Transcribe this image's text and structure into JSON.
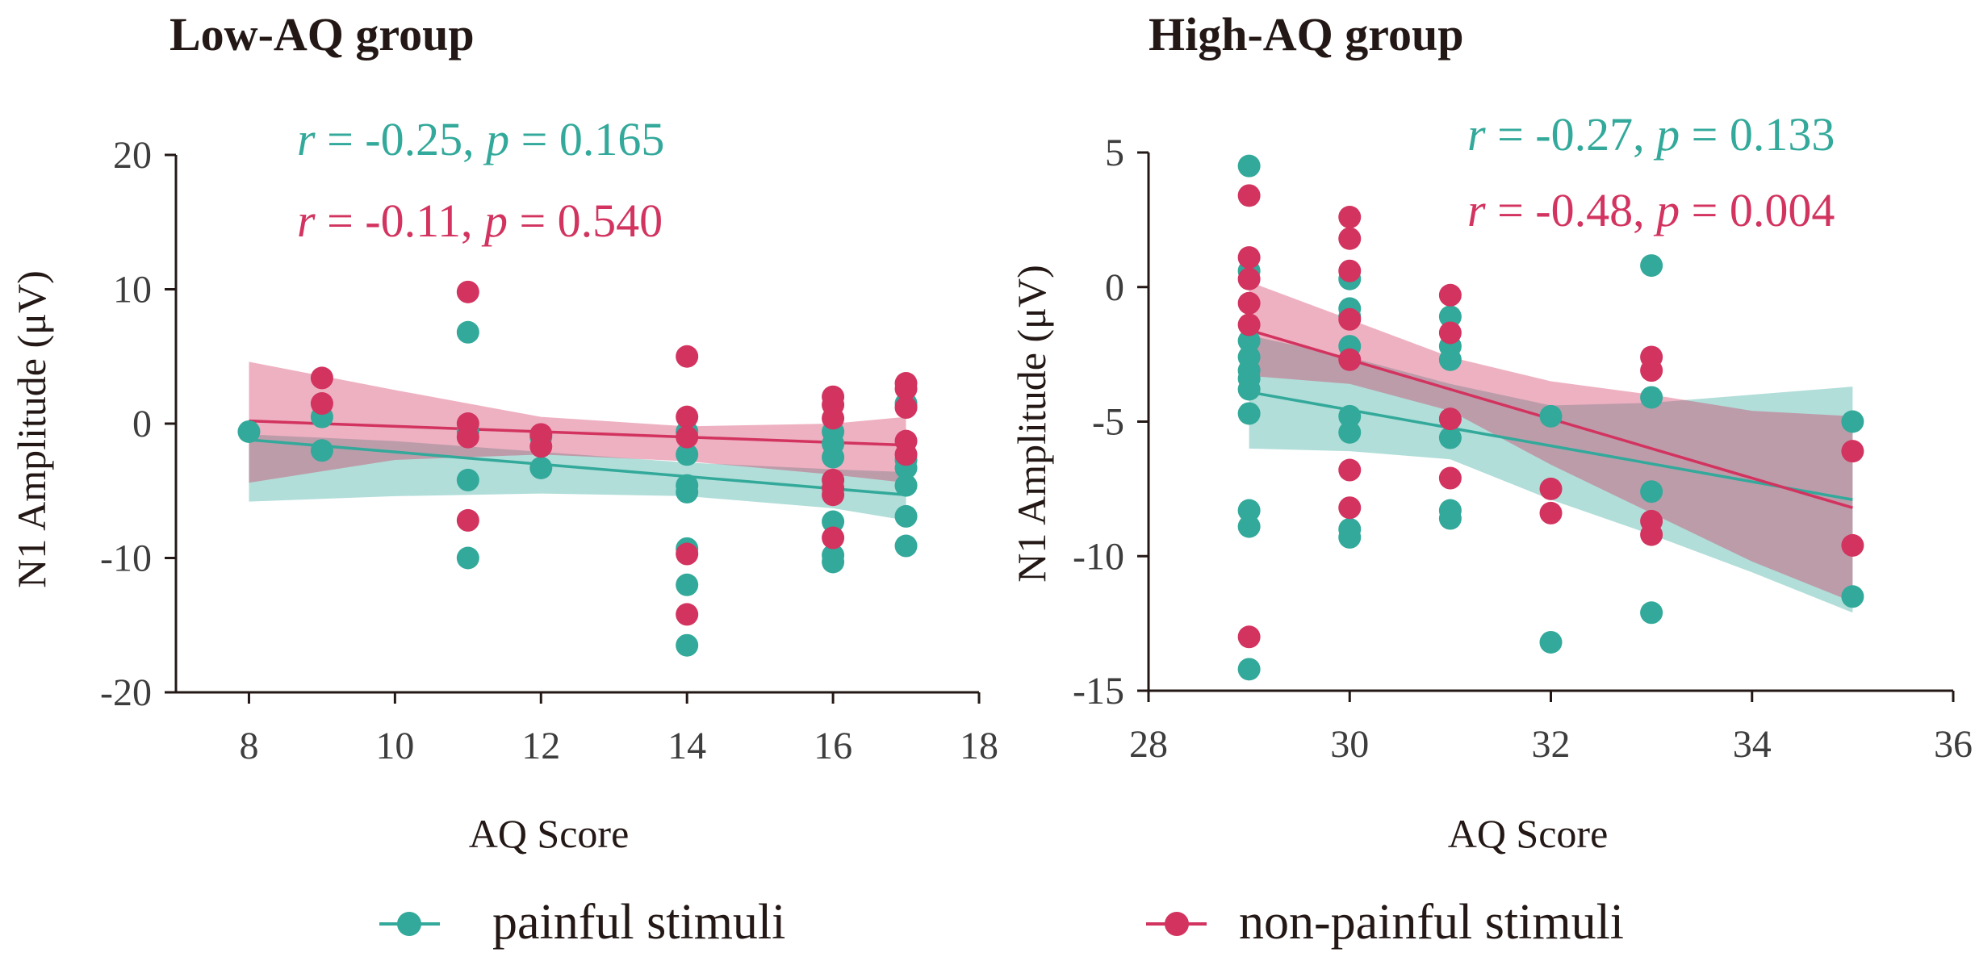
{
  "colors": {
    "painful": "#32a99a",
    "nonpainful": "#d2335f",
    "text": "#231815"
  },
  "legend": {
    "painful_label": "painful stimuli",
    "nonpainful_label": "non-painful stimuli"
  },
  "chart_data": [
    {
      "type": "scatter",
      "title": "Low-AQ group",
      "xlabel": "AQ Score",
      "ylabel": "N1 Amplitude (μV)",
      "xlim": [
        7,
        18
      ],
      "ylim": [
        -20,
        20
      ],
      "xticks": [
        8,
        10,
        12,
        14,
        16,
        18
      ],
      "yticks": [
        20,
        10,
        0,
        -10,
        -20
      ],
      "stats": [
        {
          "series": "painful",
          "r_label": "r",
          "r_text": " = -0.25,",
          "p_label": "p",
          "p_text": " = 0.165"
        },
        {
          "series": "nonpainful",
          "r_label": "r",
          "r_text": " = -0.11,",
          "p_label": "p",
          "p_text": " = 0.540"
        }
      ],
      "series": [
        {
          "name": "painful stimuli",
          "key": "painful",
          "points": [
            [
              8,
              -0.6
            ],
            [
              9,
              0.5
            ],
            [
              9,
              -2
            ],
            [
              11,
              6.8
            ],
            [
              11,
              -0.6
            ],
            [
              11,
              -4.2
            ],
            [
              11,
              -10
            ],
            [
              12,
              -1
            ],
            [
              12,
              -3.3
            ],
            [
              14,
              -0.6
            ],
            [
              14,
              -2.3
            ],
            [
              14,
              -4.6
            ],
            [
              14,
              -5.1
            ],
            [
              14,
              -9.3
            ],
            [
              14,
              -12
            ],
            [
              14,
              -16.5
            ],
            [
              16,
              -0.6
            ],
            [
              16,
              -1.5
            ],
            [
              16,
              -2.5
            ],
            [
              16,
              -7.3
            ],
            [
              16,
              -9.8
            ],
            [
              16,
              -10.3
            ],
            [
              17,
              1.5
            ],
            [
              17,
              -2.7
            ],
            [
              17,
              -3.3
            ],
            [
              17,
              -4.6
            ],
            [
              17,
              -6.9
            ],
            [
              17,
              -9.1
            ]
          ],
          "fit": {
            "x": [
              8,
              17
            ],
            "y": [
              -1.2,
              -5.3
            ]
          },
          "ci_upper": [
            [
              8,
              -0.8
            ],
            [
              10,
              -1.3
            ],
            [
              12,
              -2.1
            ],
            [
              14,
              -2.9
            ],
            [
              16,
              -3.4
            ],
            [
              17,
              -3.6
            ]
          ],
          "ci_lower": [
            [
              8,
              -5.8
            ],
            [
              10,
              -5.4
            ],
            [
              12,
              -5.2
            ],
            [
              14,
              -5.4
            ],
            [
              16,
              -6.3
            ],
            [
              17,
              -7.2
            ]
          ]
        },
        {
          "name": "non-painful stimuli",
          "key": "nonpainful",
          "points": [
            [
              9,
              3.4
            ],
            [
              9,
              1.5
            ],
            [
              11,
              9.8
            ],
            [
              11,
              0
            ],
            [
              11,
              -1
            ],
            [
              11,
              -7.2
            ],
            [
              12,
              -0.8
            ],
            [
              12,
              -1.7
            ],
            [
              14,
              5
            ],
            [
              14,
              0.5
            ],
            [
              14,
              -1
            ],
            [
              14,
              -9.7
            ],
            [
              14,
              -14.2
            ],
            [
              16,
              2
            ],
            [
              16,
              1.4
            ],
            [
              16,
              0.4
            ],
            [
              16,
              -4.2
            ],
            [
              16,
              -4.8
            ],
            [
              16,
              -5.3
            ],
            [
              16,
              -8.5
            ],
            [
              17,
              3
            ],
            [
              17,
              2.6
            ],
            [
              17,
              1.2
            ],
            [
              17,
              -1.3
            ],
            [
              17,
              -2.3
            ]
          ],
          "fit": {
            "x": [
              8,
              17
            ],
            "y": [
              0.2,
              -1.6
            ]
          },
          "ci_upper": [
            [
              8,
              4.6
            ],
            [
              10,
              2.5
            ],
            [
              12,
              0.5
            ],
            [
              14,
              -0.2
            ],
            [
              16,
              0
            ],
            [
              17,
              0.5
            ]
          ],
          "ci_lower": [
            [
              8,
              -4.4
            ],
            [
              10,
              -2.7
            ],
            [
              12,
              -2.3
            ],
            [
              14,
              -2.8
            ],
            [
              16,
              -3.8
            ],
            [
              17,
              -4.4
            ]
          ]
        }
      ]
    },
    {
      "type": "scatter",
      "title": "High-AQ group",
      "xlabel": "AQ Score",
      "ylabel": "N1 Amplitude (μV)",
      "xlim": [
        28,
        36
      ],
      "ylim": [
        -15,
        5
      ],
      "xticks": [
        28,
        30,
        32,
        34,
        36
      ],
      "yticks": [
        5,
        0,
        -5,
        -10,
        -15
      ],
      "stats": [
        {
          "series": "painful",
          "r_label": "r",
          "r_text": " = -0.27,",
          "p_label": "p",
          "p_text": " = 0.133"
        },
        {
          "series": "nonpainful",
          "r_label": "r",
          "r_text": " = -0.48,",
          "p_label": "p",
          "p_text": " = 0.004"
        }
      ],
      "series": [
        {
          "name": "painful stimuli",
          "key": "painful",
          "points": [
            [
              29,
              4.5
            ],
            [
              29,
              0.6
            ],
            [
              29,
              -2
            ],
            [
              29,
              -2.6
            ],
            [
              29,
              -3.1
            ],
            [
              29,
              -3.4
            ],
            [
              29,
              -3.8
            ],
            [
              29,
              -4.7
            ],
            [
              29,
              -8.3
            ],
            [
              29,
              -8.9
            ],
            [
              29,
              -14.2
            ],
            [
              30,
              0.3
            ],
            [
              30,
              -0.8
            ],
            [
              30,
              -1.1
            ],
            [
              30,
              -2.2
            ],
            [
              30,
              -4.8
            ],
            [
              30,
              -5.4
            ],
            [
              30,
              -9
            ],
            [
              30,
              -9.3
            ],
            [
              31,
              -1.1
            ],
            [
              31,
              -2.2
            ],
            [
              31,
              -2.7
            ],
            [
              31,
              -5.6
            ],
            [
              31,
              -8.3
            ],
            [
              31,
              -8.6
            ],
            [
              32,
              -4.8
            ],
            [
              32,
              -13.2
            ],
            [
              33,
              0.8
            ],
            [
              33,
              -4.1
            ],
            [
              33,
              -7.6
            ],
            [
              33,
              -12.1
            ],
            [
              35,
              -5
            ],
            [
              35,
              -11.5
            ]
          ],
          "fit": {
            "x": [
              29,
              35
            ],
            "y": [
              -3.9,
              -7.9
            ]
          },
          "ci_upper": [
            [
              29,
              -1.8
            ],
            [
              30,
              -2.6
            ],
            [
              31,
              -3.6
            ],
            [
              32,
              -4.4
            ],
            [
              33,
              -4.3
            ],
            [
              34,
              -4
            ],
            [
              35,
              -3.7
            ]
          ],
          "ci_lower": [
            [
              29,
              -6
            ],
            [
              30,
              -6.1
            ],
            [
              31,
              -6.4
            ],
            [
              32,
              -7.9
            ],
            [
              33,
              -9.2
            ],
            [
              34,
              -10.6
            ],
            [
              35,
              -12.1
            ]
          ]
        },
        {
          "name": "non-painful stimuli",
          "key": "nonpainful",
          "points": [
            [
              29,
              3.4
            ],
            [
              29,
              1.1
            ],
            [
              29,
              0.3
            ],
            [
              29,
              -0.6
            ],
            [
              29,
              -1.4
            ],
            [
              29,
              -13
            ],
            [
              30,
              2.6
            ],
            [
              30,
              1.8
            ],
            [
              30,
              0.6
            ],
            [
              30,
              -1.2
            ],
            [
              30,
              -2.7
            ],
            [
              30,
              -6.8
            ],
            [
              30,
              -8.2
            ],
            [
              31,
              -0.3
            ],
            [
              31,
              -1.7
            ],
            [
              31,
              -4.9
            ],
            [
              31,
              -7.1
            ],
            [
              32,
              -7.5
            ],
            [
              32,
              -8.4
            ],
            [
              33,
              -2.6
            ],
            [
              33,
              -3.1
            ],
            [
              33,
              -8.7
            ],
            [
              33,
              -9.2
            ],
            [
              35,
              -6.1
            ],
            [
              35,
              -9.6
            ]
          ],
          "fit": {
            "x": [
              29,
              35
            ],
            "y": [
              -1.6,
              -8.2
            ]
          },
          "ci_upper": [
            [
              29,
              0.2
            ],
            [
              30,
              -1.2
            ],
            [
              31,
              -2.6
            ],
            [
              32,
              -3.5
            ],
            [
              33,
              -4
            ],
            [
              34,
              -4.6
            ],
            [
              35,
              -4.8
            ]
          ],
          "ci_lower": [
            [
              29,
              -3.3
            ],
            [
              30,
              -3.6
            ],
            [
              31,
              -4.6
            ],
            [
              32,
              -6.6
            ],
            [
              33,
              -8.4
            ],
            [
              34,
              -10.2
            ],
            [
              35,
              -11.7
            ]
          ]
        }
      ]
    }
  ]
}
